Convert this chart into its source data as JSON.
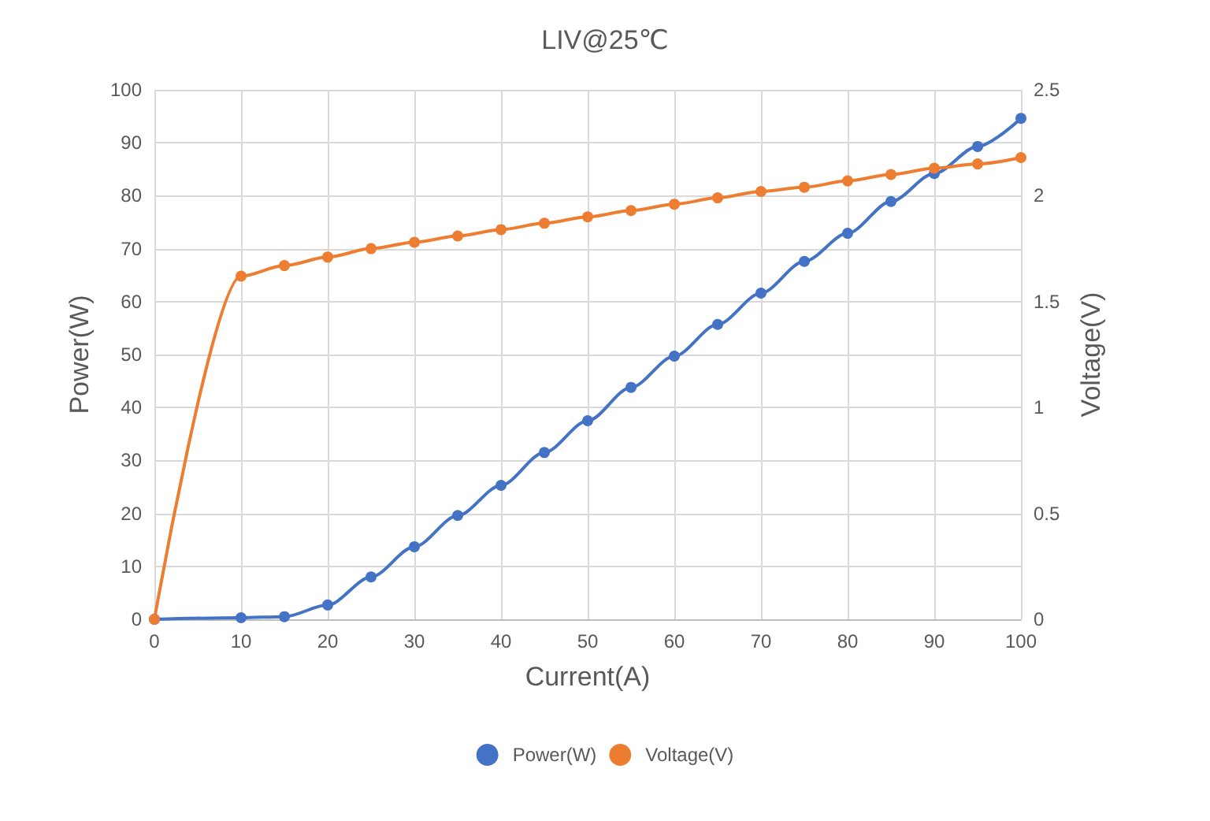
{
  "chart_data": {
    "type": "line",
    "title": "LIV@25℃",
    "xlabel": "Current(A)",
    "ylabel": "Power(W)",
    "y2label": "Voltage(V)",
    "x": [
      0,
      10,
      15,
      20,
      25,
      30,
      35,
      40,
      45,
      50,
      55,
      60,
      65,
      70,
      75,
      80,
      85,
      90,
      95,
      100
    ],
    "series": [
      {
        "name": "Power(W)",
        "color": "#4472c4",
        "values": [
          0,
          0.3,
          0.5,
          2.7,
          8,
          13.7,
          19.6,
          25.3,
          31.5,
          37.5,
          43.8,
          49.7,
          55.7,
          61.6,
          67.6,
          72.9,
          78.9,
          84.2,
          89.3,
          94.6
        ]
      },
      {
        "name": "Voltage(V)",
        "color": "#ed7d31",
        "axis": "y2",
        "values": [
          0,
          1.62,
          1.67,
          1.71,
          1.75,
          1.78,
          1.81,
          1.84,
          1.87,
          1.9,
          1.93,
          1.96,
          1.99,
          2.02,
          2.04,
          2.07,
          2.1,
          2.13,
          2.15,
          2.18
        ]
      }
    ],
    "xlim": [
      0,
      100
    ],
    "xticks": [
      0,
      10,
      20,
      30,
      40,
      50,
      60,
      70,
      80,
      90,
      100
    ],
    "ylim": [
      0,
      100
    ],
    "yticks": [
      0,
      10,
      20,
      30,
      40,
      50,
      60,
      70,
      80,
      90,
      100
    ],
    "y2lim": [
      0,
      2.5
    ],
    "y2ticks": [
      0,
      0.5,
      1,
      1.5,
      2,
      2.5
    ],
    "grid": true,
    "legend": "bottom",
    "marker": "circle",
    "line_style": "solid"
  }
}
